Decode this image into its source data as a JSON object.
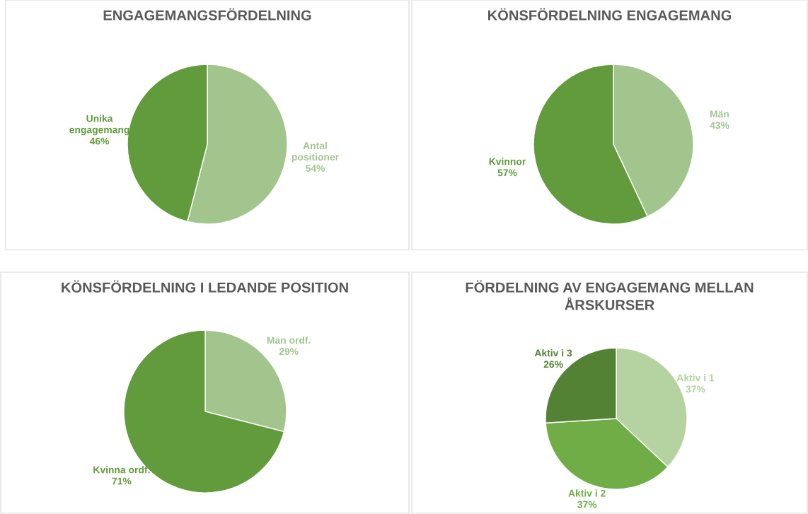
{
  "chart_data": [
    {
      "type": "pie",
      "title": "ENGAGEMANGSFÖRDELNING",
      "categories": [
        "Antal positioner",
        "Unika engagemang"
      ],
      "values": [
        54,
        46
      ],
      "value_labels": [
        "54%",
        "46%"
      ],
      "colors": [
        "#a2c58e",
        "#629b3c"
      ]
    },
    {
      "type": "pie",
      "title": "KÖNSFÖRDELNING ENGAGEMANG",
      "categories": [
        "Män",
        "Kvinnor"
      ],
      "values": [
        43,
        57
      ],
      "value_labels": [
        "43%",
        "57%"
      ],
      "colors": [
        "#a2c58e",
        "#629b3c"
      ]
    },
    {
      "type": "pie",
      "title": "KÖNSFÖRDELNING I LEDANDE POSITION",
      "categories": [
        "Man ordf.",
        "Kvinna ordf."
      ],
      "values": [
        29,
        71
      ],
      "value_labels": [
        "29%",
        "71%"
      ],
      "colors": [
        "#a2c58e",
        "#629b3c"
      ]
    },
    {
      "type": "pie",
      "title": "FÖRDELNING AV ENGAGEMANG MELLAN ÅRSKURSER",
      "categories": [
        "Aktiv i 1",
        "Aktiv i 2",
        "Aktiv i 3"
      ],
      "values": [
        37,
        37,
        26
      ],
      "value_labels": [
        "37%",
        "37%",
        "26%"
      ],
      "colors": [
        "#b4d3a0",
        "#70ad47",
        "#548235"
      ]
    }
  ]
}
